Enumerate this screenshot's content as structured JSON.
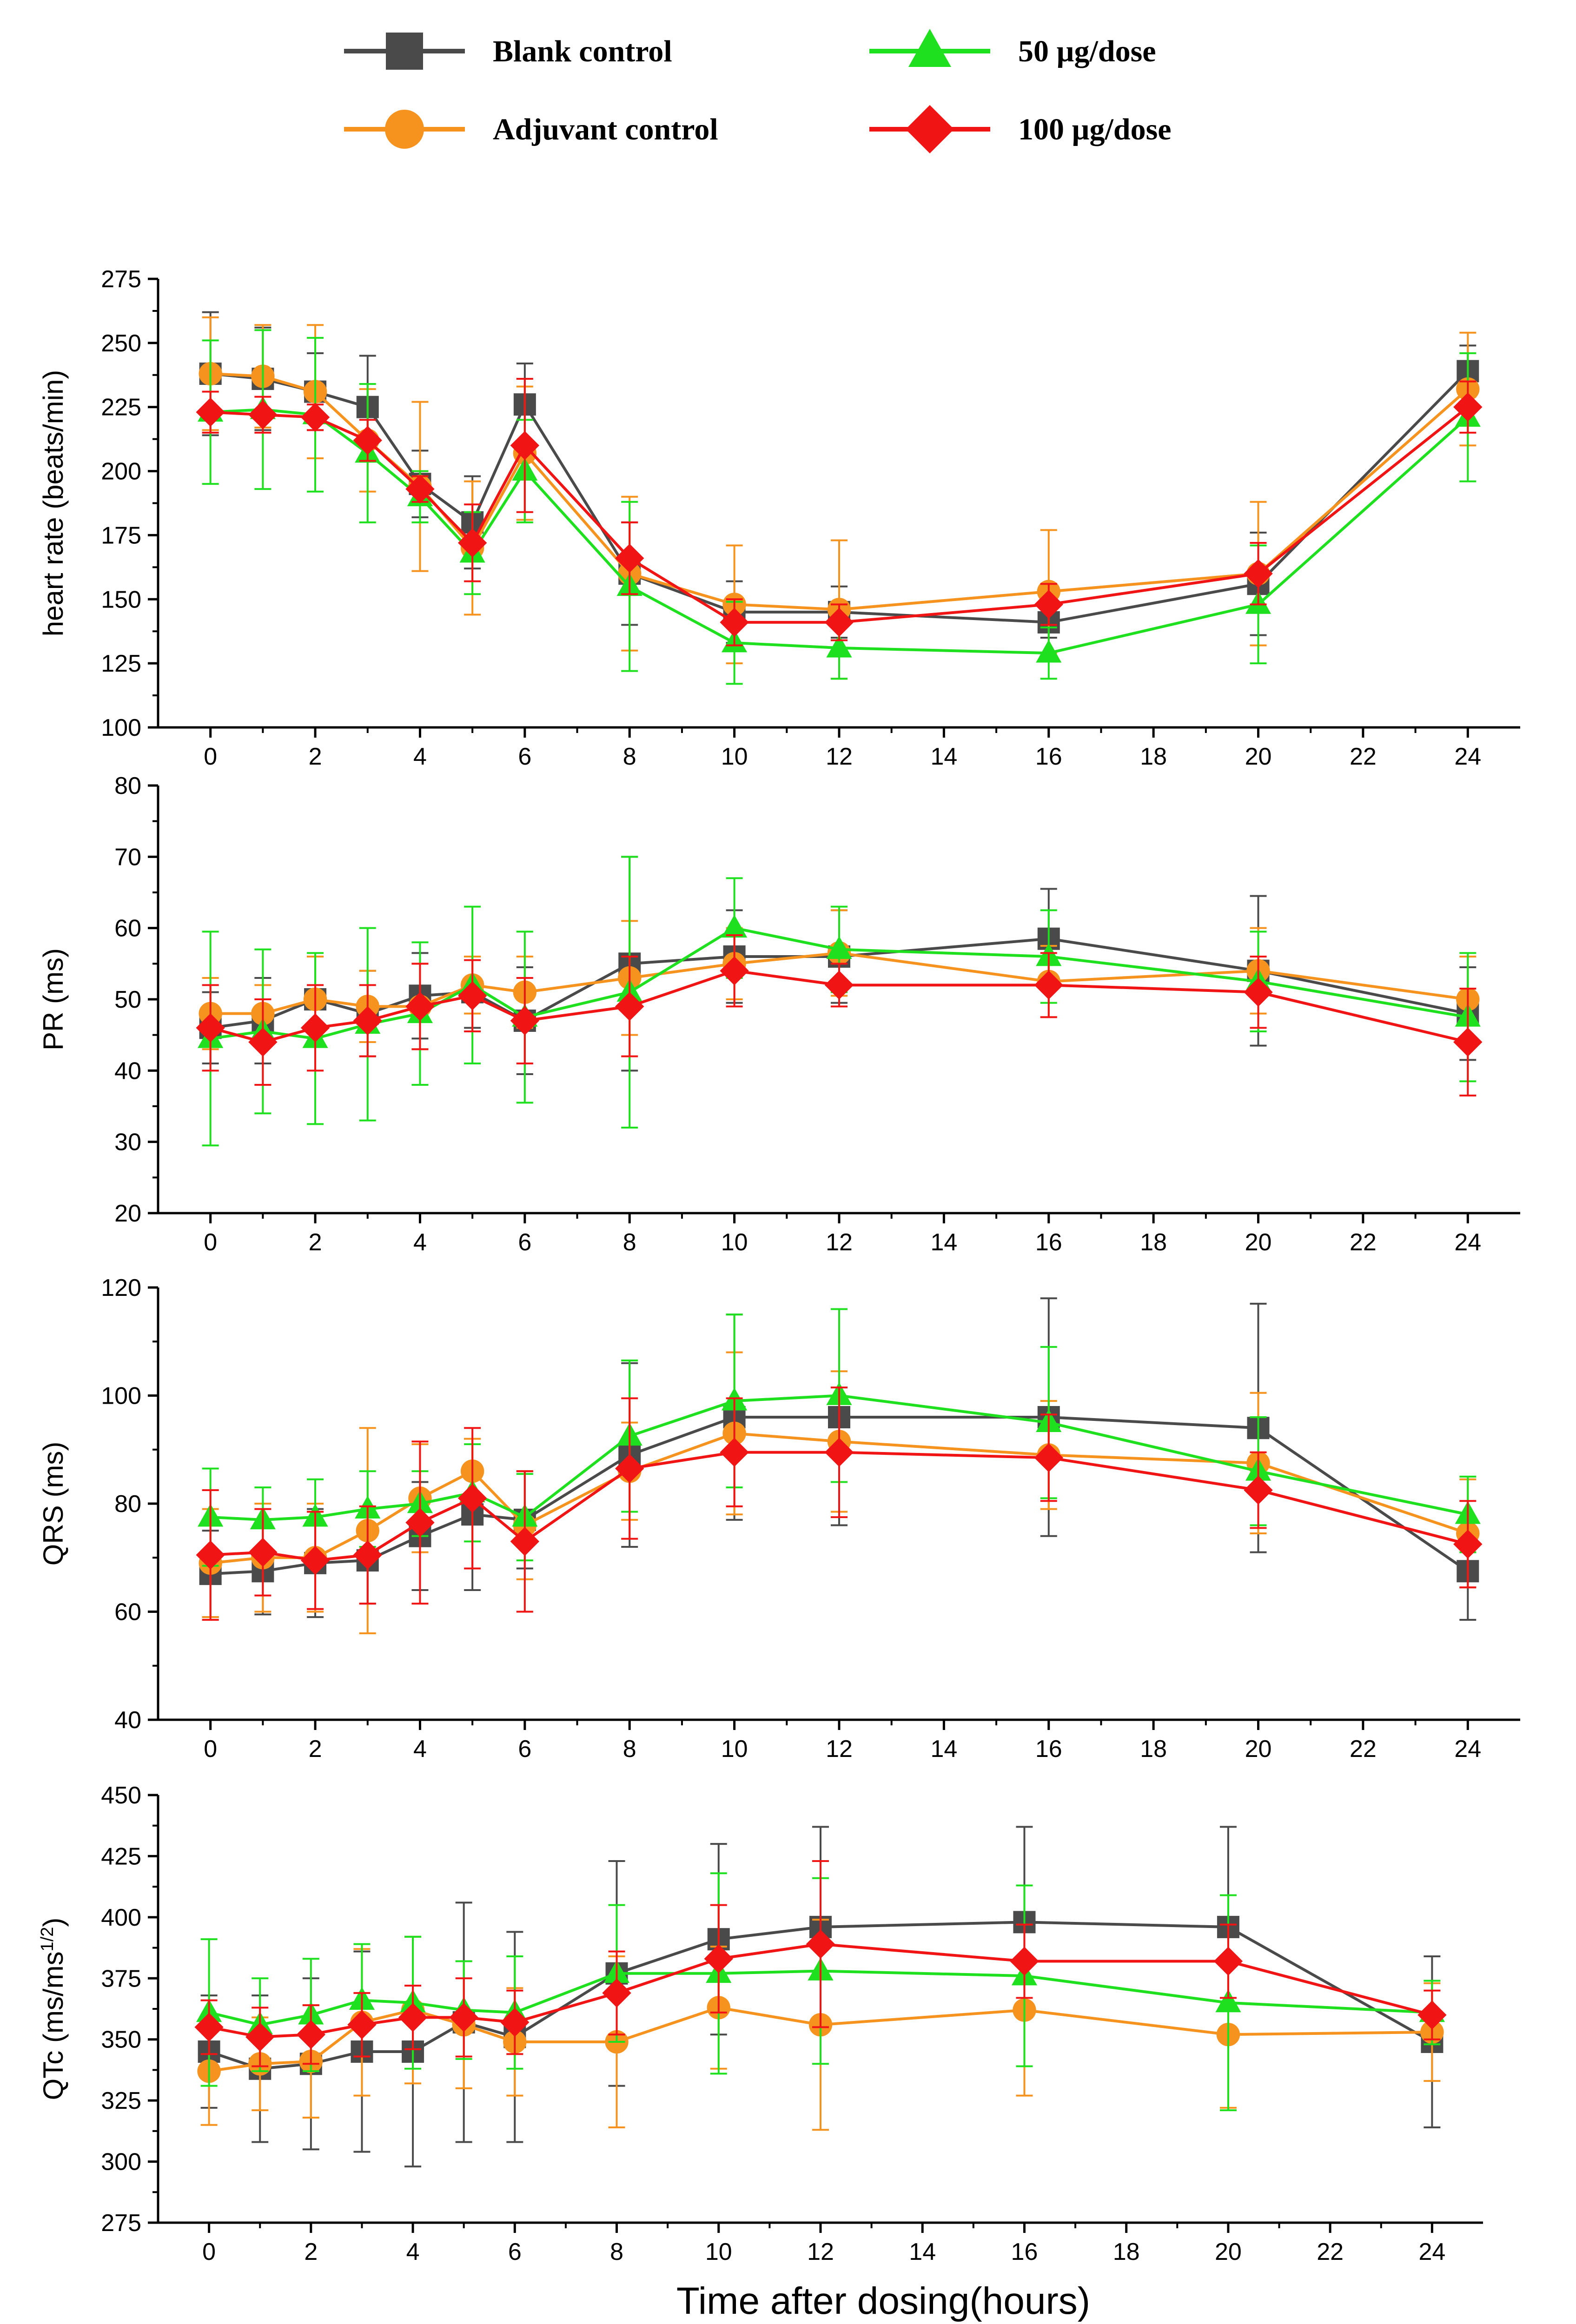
{
  "legend": [
    {
      "name": "Blank control",
      "color": "#4a4a4a",
      "marker": "square"
    },
    {
      "name": "50 µg/dose",
      "color": "#1fe01f",
      "marker": "triangle"
    },
    {
      "name": "Adjuvant control",
      "color": "#f5931e",
      "marker": "circle"
    },
    {
      "name": "100 µg/dose",
      "color": "#f01414",
      "marker": "diamond"
    }
  ],
  "xlabel": "Time after dosing(hours)",
  "chart_data": [
    {
      "type": "line",
      "ylabel": "heart rate (beats/min)",
      "ylim": [
        100,
        275
      ],
      "yticks": [
        100,
        125,
        150,
        175,
        200,
        225,
        250,
        275
      ],
      "xlim": [
        -1,
        25
      ],
      "xticks": [
        0,
        2,
        4,
        6,
        8,
        10,
        12,
        14,
        16,
        18,
        20,
        22,
        24
      ],
      "x": [
        0,
        1,
        2,
        3,
        4,
        5,
        6,
        8,
        10,
        12,
        16,
        20,
        24
      ],
      "series": [
        {
          "name": "Blank control",
          "values": [
            238,
            236,
            231,
            225,
            195,
            180,
            226,
            160,
            145,
            145,
            141,
            156,
            239
          ],
          "errors": [
            24,
            20,
            15,
            20,
            13,
            18,
            16,
            20,
            12,
            10,
            6,
            20,
            10
          ]
        },
        {
          "name": "Adjuvant control",
          "values": [
            238,
            237,
            231,
            212,
            194,
            170,
            207,
            160,
            148,
            146,
            153,
            160,
            232
          ],
          "errors": [
            22,
            20,
            26,
            20,
            33,
            26,
            26,
            30,
            23,
            27,
            24,
            28,
            22
          ]
        },
        {
          "name": "50 µg/dose",
          "values": [
            223,
            224,
            222,
            207,
            190,
            168,
            200,
            155,
            133,
            131,
            129,
            148,
            221
          ],
          "errors": [
            28,
            31,
            30,
            27,
            10,
            16,
            20,
            33,
            16,
            12,
            10,
            23,
            25
          ]
        },
        {
          "name": "100 µg/dose",
          "values": [
            223,
            222,
            221,
            212,
            193,
            172,
            210,
            166,
            141,
            141,
            148,
            160,
            225
          ],
          "errors": [
            8,
            7,
            5,
            8,
            5,
            15,
            26,
            14,
            9,
            7,
            8,
            12,
            10
          ]
        }
      ]
    },
    {
      "type": "line",
      "ylabel": "PR (ms)",
      "ylim": [
        20,
        80
      ],
      "yticks": [
        20,
        30,
        40,
        50,
        60,
        70,
        80
      ],
      "xlim": [
        -1,
        25
      ],
      "xticks": [
        0,
        2,
        4,
        6,
        8,
        10,
        12,
        14,
        16,
        18,
        20,
        22,
        24
      ],
      "x": [
        0,
        1,
        2,
        3,
        4,
        5,
        6,
        8,
        10,
        12,
        16,
        20,
        24
      ],
      "series": [
        {
          "name": "Blank control",
          "values": [
            46,
            47,
            50,
            48,
            50.5,
            51,
            47,
            55,
            56,
            56,
            58.5,
            54,
            48
          ],
          "errors": [
            5,
            6,
            6,
            6,
            6,
            5,
            7.5,
            15,
            6.5,
            6.5,
            7,
            10.5,
            6.5
          ]
        },
        {
          "name": "Adjuvant control",
          "values": [
            48,
            48,
            50,
            49,
            49,
            52,
            51,
            53,
            55,
            56.5,
            52.5,
            54,
            50
          ],
          "errors": [
            5,
            4,
            6,
            5,
            6,
            4,
            5,
            8,
            5,
            6,
            5,
            6,
            6
          ]
        },
        {
          "name": "50 µg/dose",
          "values": [
            44.5,
            45.5,
            44.5,
            46.5,
            48,
            52,
            47.5,
            51,
            60,
            57,
            56,
            52.5,
            47.5
          ],
          "errors": [
            15,
            11.5,
            12,
            13.5,
            10,
            11,
            12,
            19,
            7,
            6,
            6.5,
            7,
            9
          ]
        },
        {
          "name": "100 µg/dose",
          "values": [
            46,
            44,
            46,
            47,
            49,
            50.5,
            47,
            49,
            54,
            52,
            52,
            51,
            44
          ],
          "errors": [
            6,
            6,
            6,
            5,
            6,
            5,
            6,
            7,
            5,
            3,
            4.5,
            5,
            7.5
          ]
        }
      ]
    },
    {
      "type": "line",
      "ylabel": "QRS (ms)",
      "ylim": [
        40,
        120
      ],
      "yticks": [
        40,
        60,
        80,
        100,
        120
      ],
      "xlim": [
        -1,
        25
      ],
      "xticks": [
        0,
        2,
        4,
        6,
        8,
        10,
        12,
        14,
        16,
        18,
        20,
        22,
        24
      ],
      "x": [
        0,
        1,
        2,
        3,
        4,
        5,
        6,
        8,
        10,
        12,
        16,
        20,
        24
      ],
      "series": [
        {
          "name": "Blank control",
          "values": [
            67,
            67.5,
            69,
            69.5,
            74,
            78,
            77,
            89,
            96,
            96,
            96,
            94,
            67.5
          ],
          "errors": [
            8,
            8,
            10,
            8,
            10,
            14,
            9,
            17,
            19,
            20,
            22,
            23,
            9
          ]
        },
        {
          "name": "Adjuvant control",
          "values": [
            69,
            70,
            70,
            75,
            81,
            86,
            76,
            86,
            93,
            91.5,
            89,
            87.5,
            74.5
          ],
          "errors": [
            10,
            10,
            10,
            19,
            10,
            6,
            10,
            9,
            15,
            13,
            10,
            13,
            10
          ]
        },
        {
          "name": "50 µg/dose",
          "values": [
            77.5,
            77,
            77.5,
            79,
            80,
            82,
            77.5,
            92.5,
            99,
            100,
            95,
            86,
            78
          ],
          "errors": [
            9,
            6,
            7,
            7,
            6,
            9,
            8,
            14,
            16,
            16,
            14,
            10,
            7
          ]
        },
        {
          "name": "100 µg/dose",
          "values": [
            70.5,
            71,
            69.5,
            70.5,
            76.5,
            81,
            73,
            86.5,
            89.5,
            89.5,
            88.5,
            82.5,
            72.5
          ],
          "errors": [
            12,
            8,
            9,
            9,
            15,
            13,
            13,
            13,
            10,
            12,
            8,
            7,
            8
          ]
        }
      ]
    },
    {
      "type": "line",
      "ylabel": "QTc (ms/ms",
      "ylabel_superscript": "1/2",
      "ylabel_close": ")",
      "ylim": [
        275,
        450
      ],
      "yticks": [
        275,
        300,
        325,
        350,
        375,
        400,
        425,
        450
      ],
      "xlim": [
        -1,
        25
      ],
      "xticks": [
        0,
        2,
        4,
        6,
        8,
        10,
        12,
        14,
        16,
        18,
        20,
        22,
        24
      ],
      "x": [
        0,
        1,
        2,
        3,
        4,
        5,
        6,
        8,
        10,
        12,
        16,
        20,
        24
      ],
      "series": [
        {
          "name": "Blank control",
          "values": [
            345,
            338,
            340,
            345,
            345,
            357,
            351,
            377,
            391,
            396,
            398,
            396,
            349
          ],
          "errors": [
            23,
            30,
            35,
            41,
            47,
            49,
            43,
            46,
            39,
            41,
            39,
            41,
            35
          ]
        },
        {
          "name": "Adjuvant control",
          "values": [
            337,
            340,
            341,
            357,
            362,
            356,
            349,
            349,
            363,
            356,
            362,
            352,
            353
          ],
          "errors": [
            22,
            19,
            23,
            30,
            30,
            26,
            22,
            35,
            25,
            43,
            35,
            30,
            20
          ]
        },
        {
          "name": "50 µg/dose",
          "values": [
            361,
            356,
            360,
            366,
            365,
            362,
            361,
            377,
            377,
            378,
            376,
            365,
            361
          ],
          "errors": [
            30,
            19,
            23,
            23,
            27,
            20,
            23,
            28,
            41,
            38,
            37,
            44,
            13
          ]
        },
        {
          "name": "100 µg/dose",
          "values": [
            355,
            351,
            352,
            356,
            359,
            359,
            357,
            369,
            383,
            389,
            382,
            382,
            360
          ],
          "errors": [
            11,
            12,
            12,
            13,
            13,
            16,
            13,
            17,
            22,
            34,
            15,
            15,
            10
          ]
        }
      ]
    }
  ]
}
